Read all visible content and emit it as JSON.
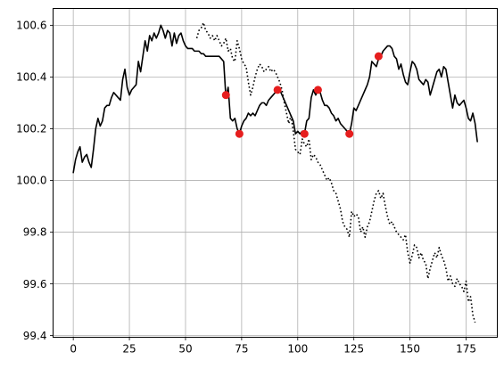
{
  "chart_data": {
    "type": "line",
    "title": "",
    "xlabel": "",
    "ylabel": "",
    "xlim": [
      -9,
      188.9
    ],
    "ylim": [
      99.393,
      100.665
    ],
    "grid": true,
    "x_ticks": [
      0,
      25,
      50,
      75,
      100,
      125,
      150,
      175
    ],
    "x_tick_labels": [
      "0",
      "25",
      "50",
      "75",
      "100",
      "125",
      "150",
      "175"
    ],
    "y_ticks": [
      99.4,
      99.6,
      99.8,
      100.0,
      100.2,
      100.4,
      100.6
    ],
    "y_tick_labels": [
      "99.4",
      "99.6",
      "99.8",
      "100.0",
      "100.2",
      "100.4",
      "100.6"
    ],
    "series": [
      {
        "style": "solid",
        "color": "#000000",
        "points": [
          [
            0,
            100.03
          ],
          [
            1,
            100.08
          ],
          [
            2,
            100.11
          ],
          [
            3,
            100.13
          ],
          [
            4,
            100.07
          ],
          [
            5,
            100.09
          ],
          [
            6,
            100.1
          ],
          [
            7,
            100.07
          ],
          [
            8,
            100.05
          ],
          [
            9,
            100.12
          ],
          [
            10,
            100.2
          ],
          [
            11,
            100.24
          ],
          [
            12,
            100.21
          ],
          [
            13,
            100.23
          ],
          [
            14,
            100.28
          ],
          [
            15,
            100.29
          ],
          [
            16,
            100.29
          ],
          [
            17,
            100.32
          ],
          [
            18,
            100.34
          ],
          [
            19,
            100.33
          ],
          [
            20,
            100.32
          ],
          [
            21,
            100.31
          ],
          [
            22,
            100.39
          ],
          [
            23,
            100.43
          ],
          [
            24,
            100.36
          ],
          [
            25,
            100.33
          ],
          [
            26,
            100.35
          ],
          [
            27,
            100.36
          ],
          [
            28,
            100.37
          ],
          [
            29,
            100.46
          ],
          [
            30,
            100.42
          ],
          [
            31,
            100.48
          ],
          [
            32,
            100.54
          ],
          [
            33,
            100.5
          ],
          [
            34,
            100.56
          ],
          [
            35,
            100.54
          ],
          [
            36,
            100.57
          ],
          [
            37,
            100.55
          ],
          [
            38,
            100.57
          ],
          [
            39,
            100.6
          ],
          [
            40,
            100.58
          ],
          [
            41,
            100.55
          ],
          [
            42,
            100.58
          ],
          [
            43,
            100.57
          ],
          [
            44,
            100.52
          ],
          [
            45,
            100.57
          ],
          [
            46,
            100.53
          ],
          [
            47,
            100.56
          ],
          [
            48,
            100.57
          ],
          [
            49,
            100.54
          ],
          [
            50,
            100.52
          ],
          [
            51,
            100.51
          ],
          [
            52,
            100.51
          ],
          [
            53,
            100.51
          ],
          [
            54,
            100.5
          ],
          [
            55,
            100.5
          ],
          [
            56,
            100.5
          ],
          [
            57,
            100.49
          ],
          [
            58,
            100.49
          ],
          [
            59,
            100.48
          ],
          [
            60,
            100.48
          ],
          [
            61,
            100.48
          ],
          [
            62,
            100.48
          ],
          [
            63,
            100.48
          ],
          [
            64,
            100.48
          ],
          [
            65,
            100.48
          ],
          [
            66,
            100.47
          ],
          [
            67,
            100.46
          ],
          [
            68,
            100.32
          ],
          [
            69,
            100.36
          ],
          [
            70,
            100.24
          ],
          [
            71,
            100.23
          ],
          [
            72,
            100.24
          ],
          [
            73,
            100.2
          ],
          [
            74,
            100.18
          ],
          [
            75,
            100.21
          ],
          [
            76,
            100.23
          ],
          [
            77,
            100.24
          ],
          [
            78,
            100.26
          ],
          [
            79,
            100.25
          ],
          [
            80,
            100.26
          ],
          [
            81,
            100.25
          ],
          [
            82,
            100.27
          ],
          [
            83,
            100.29
          ],
          [
            84,
            100.3
          ],
          [
            85,
            100.3
          ],
          [
            86,
            100.29
          ],
          [
            87,
            100.31
          ],
          [
            88,
            100.32
          ],
          [
            89,
            100.33
          ],
          [
            90,
            100.34
          ],
          [
            91,
            100.35
          ],
          [
            92,
            100.35
          ],
          [
            93,
            100.33
          ],
          [
            94,
            100.31
          ],
          [
            95,
            100.29
          ],
          [
            96,
            100.27
          ],
          [
            97,
            100.25
          ],
          [
            98,
            100.23
          ],
          [
            99,
            100.18
          ],
          [
            100,
            100.19
          ],
          [
            101,
            100.18
          ],
          [
            102,
            100.19
          ],
          [
            103,
            100.18
          ],
          [
            104,
            100.23
          ],
          [
            105,
            100.24
          ],
          [
            106,
            100.32
          ],
          [
            107,
            100.35
          ],
          [
            108,
            100.33
          ],
          [
            109,
            100.35
          ],
          [
            110,
            100.34
          ],
          [
            111,
            100.31
          ],
          [
            112,
            100.29
          ],
          [
            113,
            100.29
          ],
          [
            114,
            100.28
          ],
          [
            115,
            100.26
          ],
          [
            116,
            100.25
          ],
          [
            117,
            100.23
          ],
          [
            118,
            100.24
          ],
          [
            119,
            100.22
          ],
          [
            120,
            100.21
          ],
          [
            121,
            100.2
          ],
          [
            122,
            100.19
          ],
          [
            123,
            100.18
          ],
          [
            124,
            100.22
          ],
          [
            125,
            100.28
          ],
          [
            126,
            100.27
          ],
          [
            127,
            100.29
          ],
          [
            128,
            100.31
          ],
          [
            129,
            100.33
          ],
          [
            130,
            100.35
          ],
          [
            131,
            100.37
          ],
          [
            132,
            100.4
          ],
          [
            133,
            100.46
          ],
          [
            134,
            100.45
          ],
          [
            135,
            100.44
          ],
          [
            136,
            100.47
          ],
          [
            137,
            100.48
          ],
          [
            138,
            100.5
          ],
          [
            139,
            100.51
          ],
          [
            140,
            100.52
          ],
          [
            141,
            100.52
          ],
          [
            142,
            100.51
          ],
          [
            143,
            100.48
          ],
          [
            144,
            100.47
          ],
          [
            145,
            100.43
          ],
          [
            146,
            100.45
          ],
          [
            147,
            100.41
          ],
          [
            148,
            100.38
          ],
          [
            149,
            100.37
          ],
          [
            150,
            100.42
          ],
          [
            151,
            100.46
          ],
          [
            152,
            100.45
          ],
          [
            153,
            100.43
          ],
          [
            154,
            100.39
          ],
          [
            155,
            100.38
          ],
          [
            156,
            100.37
          ],
          [
            157,
            100.39
          ],
          [
            158,
            100.38
          ],
          [
            159,
            100.33
          ],
          [
            160,
            100.36
          ],
          [
            161,
            100.39
          ],
          [
            162,
            100.42
          ],
          [
            163,
            100.43
          ],
          [
            164,
            100.4
          ],
          [
            165,
            100.44
          ],
          [
            166,
            100.43
          ],
          [
            167,
            100.38
          ],
          [
            168,
            100.33
          ],
          [
            169,
            100.28
          ],
          [
            170,
            100.33
          ],
          [
            171,
            100.3
          ],
          [
            172,
            100.29
          ],
          [
            173,
            100.3
          ],
          [
            174,
            100.31
          ],
          [
            175,
            100.28
          ],
          [
            176,
            100.24
          ],
          [
            177,
            100.23
          ],
          [
            178,
            100.26
          ],
          [
            179,
            100.22
          ],
          [
            180,
            100.15
          ]
        ]
      },
      {
        "style": "dotted",
        "color": "#000000",
        "points": [
          [
            55,
            100.55
          ],
          [
            56,
            100.58
          ],
          [
            57,
            100.59
          ],
          [
            58,
            100.61
          ],
          [
            59,
            100.58
          ],
          [
            60,
            100.57
          ],
          [
            61,
            100.55
          ],
          [
            62,
            100.56
          ],
          [
            63,
            100.54
          ],
          [
            64,
            100.56
          ],
          [
            65,
            100.54
          ],
          [
            66,
            100.52
          ],
          [
            67,
            100.53
          ],
          [
            68,
            100.55
          ],
          [
            69,
            100.5
          ],
          [
            70,
            100.51
          ],
          [
            71,
            100.47
          ],
          [
            72,
            100.46
          ],
          [
            73,
            100.54
          ],
          [
            74,
            100.51
          ],
          [
            75,
            100.47
          ],
          [
            76,
            100.45
          ],
          [
            77,
            100.44
          ],
          [
            78,
            100.38
          ],
          [
            79,
            100.33
          ],
          [
            80,
            100.36
          ],
          [
            81,
            100.4
          ],
          [
            82,
            100.43
          ],
          [
            83,
            100.45
          ],
          [
            84,
            100.44
          ],
          [
            85,
            100.42
          ],
          [
            86,
            100.43
          ],
          [
            87,
            100.44
          ],
          [
            88,
            100.42
          ],
          [
            89,
            100.43
          ],
          [
            90,
            100.42
          ],
          [
            91,
            100.4
          ],
          [
            92,
            100.38
          ],
          [
            93,
            100.35
          ],
          [
            94,
            100.3
          ],
          [
            95,
            100.26
          ],
          [
            96,
            100.22
          ],
          [
            97,
            100.25
          ],
          [
            98,
            100.19
          ],
          [
            99,
            100.12
          ],
          [
            100,
            100.11
          ],
          [
            101,
            100.1
          ],
          [
            102,
            100.16
          ],
          [
            103,
            100.14
          ],
          [
            104,
            100.13
          ],
          [
            105,
            100.16
          ],
          [
            106,
            100.08
          ],
          [
            107,
            100.1
          ],
          [
            108,
            100.09
          ],
          [
            109,
            100.07
          ],
          [
            110,
            100.06
          ],
          [
            111,
            100.04
          ],
          [
            112,
            100.02
          ],
          [
            113,
            100.0
          ],
          [
            114,
            100.01
          ],
          [
            115,
            99.99
          ],
          [
            116,
            99.96
          ],
          [
            117,
            99.95
          ],
          [
            118,
            99.92
          ],
          [
            119,
            99.89
          ],
          [
            120,
            99.84
          ],
          [
            121,
            99.82
          ],
          [
            122,
            99.81
          ],
          [
            123,
            99.78
          ],
          [
            124,
            99.88
          ],
          [
            125,
            99.86
          ],
          [
            126,
            99.87
          ],
          [
            127,
            99.86
          ],
          [
            128,
            99.8
          ],
          [
            129,
            99.82
          ],
          [
            130,
            99.78
          ],
          [
            131,
            99.82
          ],
          [
            132,
            99.84
          ],
          [
            133,
            99.88
          ],
          [
            134,
            99.92
          ],
          [
            135,
            99.95
          ],
          [
            136,
            99.96
          ],
          [
            137,
            99.93
          ],
          [
            138,
            99.95
          ],
          [
            139,
            99.9
          ],
          [
            140,
            99.86
          ],
          [
            141,
            99.83
          ],
          [
            142,
            99.84
          ],
          [
            143,
            99.82
          ],
          [
            144,
            99.8
          ],
          [
            145,
            99.79
          ],
          [
            146,
            99.78
          ],
          [
            147,
            99.77
          ],
          [
            148,
            99.79
          ],
          [
            149,
            99.72
          ],
          [
            150,
            99.68
          ],
          [
            151,
            99.71
          ],
          [
            152,
            99.75
          ],
          [
            153,
            99.74
          ],
          [
            154,
            99.7
          ],
          [
            155,
            99.72
          ],
          [
            156,
            99.69
          ],
          [
            157,
            99.68
          ],
          [
            158,
            99.62
          ],
          [
            159,
            99.66
          ],
          [
            160,
            99.69
          ],
          [
            161,
            99.72
          ],
          [
            162,
            99.7
          ],
          [
            163,
            99.74
          ],
          [
            164,
            99.71
          ],
          [
            165,
            99.69
          ],
          [
            166,
            99.66
          ],
          [
            167,
            99.61
          ],
          [
            168,
            99.63
          ],
          [
            169,
            99.6
          ],
          [
            170,
            99.59
          ],
          [
            171,
            99.62
          ],
          [
            172,
            99.6
          ],
          [
            173,
            99.59
          ],
          [
            174,
            99.57
          ],
          [
            175,
            99.61
          ],
          [
            176,
            99.53
          ],
          [
            177,
            99.55
          ],
          [
            178,
            99.48
          ],
          [
            179,
            99.45
          ]
        ]
      }
    ],
    "markers": {
      "color": "#e61e1e",
      "points": [
        [
          68,
          100.33
        ],
        [
          74,
          100.18
        ],
        [
          91,
          100.35
        ],
        [
          103,
          100.18
        ],
        [
          109,
          100.35
        ],
        [
          123,
          100.18
        ],
        [
          136,
          100.48
        ]
      ]
    }
  }
}
